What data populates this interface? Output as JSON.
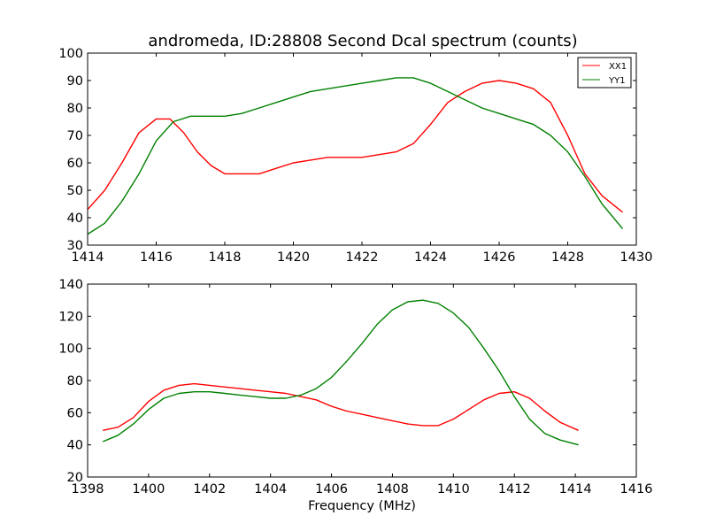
{
  "figure": {
    "title": "andromeda, ID:28808 Second Dcal spectrum (counts)",
    "xlabel": "Frequency (MHz)"
  },
  "colors": {
    "XX1": "#ff0000",
    "YY1": "#008000",
    "axes": "#000000",
    "background": "#ffffff"
  },
  "chart_data": [
    {
      "type": "line",
      "title": "andromeda, ID:28808 Second Dcal spectrum (counts)",
      "xlabel": "",
      "ylabel": "",
      "xlim": [
        1414,
        1430
      ],
      "ylim": [
        30,
        100
      ],
      "xticks": [
        "1414",
        "1416",
        "1418",
        "1420",
        "1422",
        "1424",
        "1426",
        "1428",
        "1430"
      ],
      "yticks": [
        "30",
        "40",
        "50",
        "60",
        "70",
        "80",
        "90",
        "100"
      ],
      "grid": false,
      "legend": "top-right",
      "series": [
        {
          "name": "XX1",
          "color": "#ff0000",
          "x": [
            1414.0,
            1414.5,
            1415.0,
            1415.5,
            1416.0,
            1416.4,
            1416.8,
            1417.2,
            1417.6,
            1418.0,
            1418.5,
            1419.0,
            1419.5,
            1420.0,
            1420.5,
            1421.0,
            1421.5,
            1422.0,
            1422.5,
            1423.0,
            1423.5,
            1424.0,
            1424.5,
            1425.0,
            1425.5,
            1426.0,
            1426.5,
            1427.0,
            1427.5,
            1428.0,
            1428.5,
            1429.0,
            1429.6
          ],
          "y": [
            43,
            50,
            60,
            71,
            76,
            76,
            71,
            64,
            59,
            56,
            56,
            56,
            58,
            60,
            61,
            62,
            62,
            62,
            63,
            64,
            67,
            74,
            82,
            86,
            89,
            90,
            89,
            87,
            82,
            70,
            56,
            48,
            42
          ]
        },
        {
          "name": "YY1",
          "color": "#008000",
          "x": [
            1414.0,
            1414.5,
            1415.0,
            1415.5,
            1416.0,
            1416.5,
            1417.0,
            1417.5,
            1418.0,
            1418.5,
            1419.0,
            1419.5,
            1420.0,
            1420.5,
            1421.0,
            1421.5,
            1422.0,
            1422.5,
            1423.0,
            1423.5,
            1424.0,
            1424.5,
            1425.0,
            1425.5,
            1426.0,
            1426.5,
            1427.0,
            1427.5,
            1428.0,
            1428.5,
            1429.0,
            1429.6
          ],
          "y": [
            34,
            38,
            46,
            56,
            68,
            75,
            77,
            77,
            77,
            78,
            80,
            82,
            84,
            86,
            87,
            88,
            89,
            90,
            91,
            91,
            89,
            86,
            83,
            80,
            78,
            76,
            74,
            70,
            64,
            55,
            45,
            36
          ]
        }
      ]
    },
    {
      "type": "line",
      "title": "",
      "xlabel": "Frequency (MHz)",
      "ylabel": "",
      "xlim": [
        1398,
        1416
      ],
      "ylim": [
        20,
        140
      ],
      "xticks": [
        "1398",
        "1400",
        "1402",
        "1404",
        "1406",
        "1408",
        "1410",
        "1412",
        "1414",
        "1416"
      ],
      "yticks": [
        "20",
        "40",
        "60",
        "80",
        "100",
        "120",
        "140"
      ],
      "grid": false,
      "series": [
        {
          "name": "XX1",
          "color": "#ff0000",
          "x": [
            1398.5,
            1399.0,
            1399.5,
            1400.0,
            1400.5,
            1401.0,
            1401.5,
            1402.0,
            1402.5,
            1403.0,
            1403.5,
            1404.0,
            1404.5,
            1405.0,
            1405.5,
            1406.0,
            1406.5,
            1407.0,
            1407.5,
            1408.0,
            1408.5,
            1409.0,
            1409.5,
            1410.0,
            1410.5,
            1411.0,
            1411.5,
            1412.0,
            1412.5,
            1413.0,
            1413.5,
            1414.1
          ],
          "y": [
            49,
            51,
            57,
            67,
            74,
            77,
            78,
            77,
            76,
            75,
            74,
            73,
            72,
            70,
            68,
            64,
            61,
            59,
            57,
            55,
            53,
            52,
            52,
            56,
            62,
            68,
            72,
            73,
            69,
            61,
            54,
            49
          ]
        },
        {
          "name": "YY1",
          "color": "#008000",
          "x": [
            1398.5,
            1399.0,
            1399.5,
            1400.0,
            1400.5,
            1401.0,
            1401.5,
            1402.0,
            1402.5,
            1403.0,
            1403.5,
            1404.0,
            1404.5,
            1405.0,
            1405.5,
            1406.0,
            1406.5,
            1407.0,
            1407.5,
            1408.0,
            1408.5,
            1409.0,
            1409.5,
            1410.0,
            1410.5,
            1411.0,
            1411.5,
            1412.0,
            1412.5,
            1413.0,
            1413.5,
            1414.1
          ],
          "y": [
            42,
            46,
            53,
            62,
            69,
            72,
            73,
            73,
            72,
            71,
            70,
            69,
            69,
            71,
            75,
            82,
            92,
            103,
            115,
            124,
            129,
            130,
            128,
            122,
            113,
            100,
            86,
            70,
            56,
            47,
            43,
            40
          ]
        }
      ]
    }
  ]
}
